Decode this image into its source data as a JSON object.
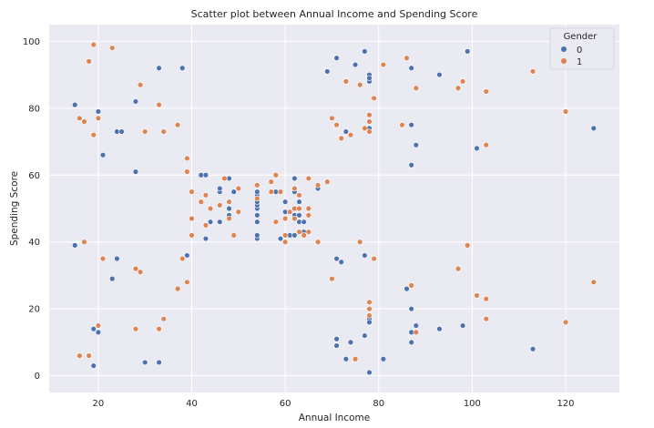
{
  "chart_data": {
    "type": "scatter",
    "title": "Scatter plot between Annual Income and Spending Score",
    "xlabel": "Annual Income",
    "ylabel": "Spending Score",
    "xlim": [
      9.5,
      131.5
    ],
    "ylim": [
      -5,
      105
    ],
    "xticks": [
      20,
      40,
      60,
      80,
      100,
      120
    ],
    "yticks": [
      0,
      20,
      40,
      60,
      80,
      100
    ],
    "grid": true,
    "legend": {
      "title": "Gender",
      "placement": "top-right"
    },
    "series": [
      {
        "name": "0",
        "color": "#4c72b0",
        "points": [
          [
            15,
            39
          ],
          [
            15,
            81
          ],
          [
            19,
            3
          ],
          [
            19,
            14
          ],
          [
            20,
            13
          ],
          [
            20,
            79
          ],
          [
            21,
            66
          ],
          [
            23,
            29
          ],
          [
            24,
            35
          ],
          [
            24,
            73
          ],
          [
            25,
            73
          ],
          [
            28,
            82
          ],
          [
            28,
            61
          ],
          [
            30,
            4
          ],
          [
            33,
            4
          ],
          [
            33,
            92
          ],
          [
            38,
            92
          ],
          [
            39,
            36
          ],
          [
            42,
            60
          ],
          [
            43,
            60
          ],
          [
            43,
            41
          ],
          [
            44,
            46
          ],
          [
            46,
            46
          ],
          [
            46,
            55
          ],
          [
            46,
            56
          ],
          [
            48,
            59
          ],
          [
            48,
            48
          ],
          [
            48,
            50
          ],
          [
            49,
            55
          ],
          [
            54,
            41
          ],
          [
            54,
            42
          ],
          [
            54,
            46
          ],
          [
            54,
            48
          ],
          [
            54,
            50
          ],
          [
            54,
            51
          ],
          [
            54,
            52
          ],
          [
            54,
            54
          ],
          [
            54,
            55
          ],
          [
            58,
            55
          ],
          [
            59,
            41
          ],
          [
            60,
            52
          ],
          [
            60,
            49
          ],
          [
            61,
            42
          ],
          [
            62,
            55
          ],
          [
            62,
            59
          ],
          [
            62,
            48
          ],
          [
            62,
            42
          ],
          [
            63,
            46
          ],
          [
            63,
            48
          ],
          [
            63,
            52
          ],
          [
            64,
            46
          ],
          [
            64,
            43
          ],
          [
            67,
            56
          ],
          [
            69,
            91
          ],
          [
            71,
            95
          ],
          [
            71,
            75
          ],
          [
            71,
            35
          ],
          [
            71,
            11
          ],
          [
            71,
            9
          ],
          [
            72,
            34
          ],
          [
            73,
            73
          ],
          [
            73,
            5
          ],
          [
            74,
            10
          ],
          [
            75,
            93
          ],
          [
            76,
            87
          ],
          [
            77,
            97
          ],
          [
            77,
            12
          ],
          [
            77,
            36
          ],
          [
            78,
            88
          ],
          [
            78,
            90
          ],
          [
            78,
            89
          ],
          [
            78,
            74
          ],
          [
            78,
            17
          ],
          [
            78,
            16
          ],
          [
            78,
            1
          ],
          [
            81,
            5
          ],
          [
            86,
            26
          ],
          [
            87,
            20
          ],
          [
            87,
            75
          ],
          [
            87,
            92
          ],
          [
            87,
            63
          ],
          [
            87,
            13
          ],
          [
            87,
            10
          ],
          [
            88,
            69
          ],
          [
            88,
            15
          ],
          [
            93,
            90
          ],
          [
            93,
            14
          ],
          [
            98,
            15
          ],
          [
            99,
            97
          ],
          [
            101,
            68
          ],
          [
            113,
            8
          ],
          [
            126,
            74
          ]
        ]
      },
      {
        "name": "1",
        "color": "#dd8452",
        "points": [
          [
            16,
            6
          ],
          [
            16,
            77
          ],
          [
            17,
            76
          ],
          [
            17,
            40
          ],
          [
            18,
            6
          ],
          [
            18,
            94
          ],
          [
            19,
            99
          ],
          [
            19,
            72
          ],
          [
            20,
            15
          ],
          [
            20,
            77
          ],
          [
            21,
            35
          ],
          [
            23,
            98
          ],
          [
            28,
            32
          ],
          [
            28,
            14
          ],
          [
            29,
            87
          ],
          [
            29,
            31
          ],
          [
            30,
            73
          ],
          [
            33,
            81
          ],
          [
            33,
            14
          ],
          [
            34,
            17
          ],
          [
            34,
            73
          ],
          [
            37,
            26
          ],
          [
            37,
            75
          ],
          [
            38,
            35
          ],
          [
            39,
            65
          ],
          [
            39,
            61
          ],
          [
            39,
            28
          ],
          [
            40,
            55
          ],
          [
            40,
            47
          ],
          [
            40,
            42
          ],
          [
            42,
            52
          ],
          [
            43,
            54
          ],
          [
            43,
            45
          ],
          [
            44,
            50
          ],
          [
            46,
            51
          ],
          [
            47,
            59
          ],
          [
            48,
            52
          ],
          [
            48,
            47
          ],
          [
            49,
            42
          ],
          [
            50,
            49
          ],
          [
            50,
            56
          ],
          [
            54,
            53
          ],
          [
            54,
            57
          ],
          [
            57,
            58
          ],
          [
            57,
            55
          ],
          [
            58,
            60
          ],
          [
            58,
            46
          ],
          [
            59,
            55
          ],
          [
            60,
            47
          ],
          [
            60,
            40
          ],
          [
            60,
            42
          ],
          [
            61,
            49
          ],
          [
            62,
            56
          ],
          [
            62,
            50
          ],
          [
            62,
            47
          ],
          [
            63,
            50
          ],
          [
            63,
            43
          ],
          [
            63,
            54
          ],
          [
            64,
            42
          ],
          [
            65,
            48
          ],
          [
            65,
            59
          ],
          [
            65,
            50
          ],
          [
            65,
            43
          ],
          [
            67,
            57
          ],
          [
            67,
            40
          ],
          [
            69,
            58
          ],
          [
            70,
            77
          ],
          [
            70,
            29
          ],
          [
            71,
            75
          ],
          [
            72,
            71
          ],
          [
            73,
            88
          ],
          [
            74,
            72
          ],
          [
            75,
            5
          ],
          [
            76,
            40
          ],
          [
            76,
            87
          ],
          [
            77,
            74
          ],
          [
            78,
            73
          ],
          [
            78,
            76
          ],
          [
            78,
            78
          ],
          [
            78,
            22
          ],
          [
            78,
            20
          ],
          [
            78,
            18
          ],
          [
            79,
            35
          ],
          [
            79,
            83
          ],
          [
            81,
            93
          ],
          [
            85,
            75
          ],
          [
            86,
            95
          ],
          [
            87,
            27
          ],
          [
            88,
            86
          ],
          [
            88,
            13
          ],
          [
            97,
            32
          ],
          [
            97,
            86
          ],
          [
            98,
            88
          ],
          [
            99,
            39
          ],
          [
            101,
            24
          ],
          [
            103,
            23
          ],
          [
            103,
            17
          ],
          [
            103,
            69
          ],
          [
            103,
            85
          ],
          [
            113,
            91
          ],
          [
            120,
            16
          ],
          [
            120,
            79
          ],
          [
            126,
            28
          ]
        ]
      }
    ]
  }
}
